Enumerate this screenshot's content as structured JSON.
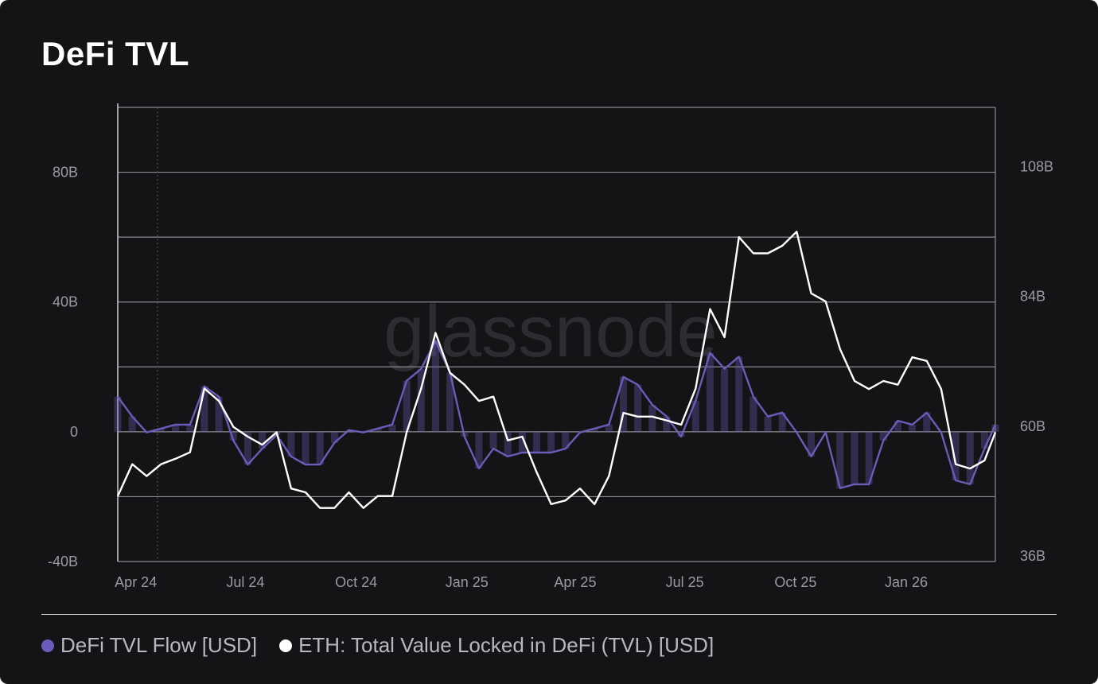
{
  "title": "DeFi TVL",
  "watermark": "glassnode",
  "chart_data": {
    "type": "line",
    "title": "DeFi TVL",
    "x_start": "2024-03-17",
    "interval_days": 12,
    "x_end": "2026-03-16",
    "x_ticks": [
      {
        "date": "2024-04-01",
        "label": "Apr 24"
      },
      {
        "date": "2024-07-01",
        "label": "Jul 24"
      },
      {
        "date": "2024-10-01",
        "label": "Oct 24"
      },
      {
        "date": "2025-01-01",
        "label": "Jan 25"
      },
      {
        "date": "2025-04-01",
        "label": "Apr 25"
      },
      {
        "date": "2025-07-01",
        "label": "Jul 25"
      },
      {
        "date": "2025-10-01",
        "label": "Oct 25"
      },
      {
        "date": "2026-01-01",
        "label": "Jan 26"
      }
    ],
    "y_left": {
      "range": [
        -40,
        100
      ],
      "unit": "B",
      "ticks": [
        {
          "v": 80,
          "label": "80B"
        },
        {
          "v": 40,
          "label": "40B"
        },
        {
          "v": 0,
          "label": "0"
        },
        {
          "v": -40,
          "label": "-40B"
        }
      ],
      "grid": [
        80,
        60,
        40,
        20,
        0,
        -20
      ]
    },
    "y_right": {
      "range": [
        36,
        120
      ],
      "unit": "B",
      "ticks": [
        {
          "v": 108,
          "label": "108B"
        },
        {
          "v": 84,
          "label": "84B"
        },
        {
          "v": 60,
          "label": "60B"
        },
        {
          "v": 36,
          "label": "36B"
        }
      ]
    },
    "series": [
      {
        "name": "DeFi TVL Flow [USD]",
        "axis": "left",
        "color": "#6a5cb8",
        "values": [
          10.8,
          4.7,
          -0.2,
          1.0,
          2.2,
          2.2,
          14.0,
          10.8,
          -2.7,
          -10.1,
          -5.2,
          -1.0,
          -7.6,
          -10.1,
          -10.1,
          -3.4,
          0.5,
          -0.2,
          1.0,
          2.2,
          15.7,
          19.4,
          28.0,
          18.2,
          -1.5,
          -11.3,
          -5.2,
          -7.6,
          -6.4,
          -6.4,
          -6.4,
          -5.2,
          -0.2,
          1.0,
          2.2,
          16.9,
          14.5,
          8.3,
          4.7,
          -1.5,
          9.6,
          24.3,
          19.4,
          23.1,
          10.8,
          4.7,
          5.9,
          -0.2,
          -7.6,
          -0.2,
          -17.4,
          -16.2,
          -16.2,
          -2.7,
          3.4,
          2.2,
          5.9,
          -0.2,
          -15.0,
          -16.2,
          -5.2,
          2.2
        ]
      },
      {
        "name": "ETH: Total Value Locked in DeFi (TVL) [USD]",
        "axis": "right",
        "color": "#ffffff",
        "values": [
          48.1,
          54.0,
          51.8,
          54.0,
          55.0,
          56.2,
          68.0,
          65.7,
          60.9,
          59.1,
          57.6,
          59.9,
          49.5,
          48.8,
          45.9,
          45.9,
          48.8,
          45.9,
          48.1,
          48.1,
          59.9,
          68.0,
          78.3,
          70.9,
          68.7,
          65.7,
          66.5,
          58.4,
          59.1,
          52.5,
          46.6,
          47.3,
          49.5,
          46.6,
          51.8,
          63.5,
          62.8,
          62.8,
          62.1,
          61.3,
          68.0,
          82.7,
          77.5,
          96.0,
          93.0,
          93.0,
          94.4,
          97.0,
          85.6,
          84.1,
          75.3,
          69.4,
          67.9,
          69.4,
          68.7,
          73.8,
          73.1,
          67.9,
          54.0,
          53.2,
          54.7,
          59.9
        ]
      }
    ],
    "legend_position": "bottom-left",
    "grid": true
  }
}
